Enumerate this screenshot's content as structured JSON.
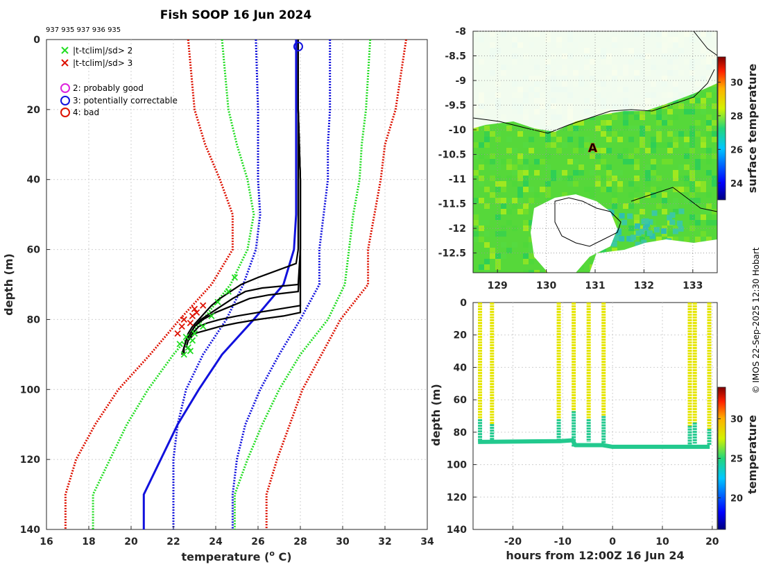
{
  "title": "Fish SOOP 16 Jun 2024",
  "drop_ids": "937 935 937 936 935",
  "credit": "© IMOS 22-Sep-2025 12:30 Hobart",
  "colors": {
    "green": "#22dd22",
    "red": "#dd1100",
    "blue": "#1111dd",
    "magenta": "#dd22dd",
    "black": "#000000",
    "yellow": "#e6e600",
    "teal": "#22c98e",
    "land": "#ffffff",
    "ocean_green": "#44d644"
  },
  "chart_data": [
    {
      "id": "profile",
      "type": "line",
      "xlabel": "temperature (° C)",
      "xlabel_main": "temperature (",
      "xlabel_sup": "o",
      "xlabel_end": " C)",
      "ylabel": "depth (m)",
      "xlim": [
        16,
        34
      ],
      "ylim": [
        0,
        140
      ],
      "xticks": [
        "16",
        "18",
        "20",
        "22",
        "24",
        "26",
        "28",
        "30",
        "32",
        "34"
      ],
      "yticks": [
        "0",
        "20",
        "40",
        "60",
        "80",
        "100",
        "120",
        "140"
      ],
      "legend": {
        "items": [
          {
            "symbol": "x",
            "color": "#22dd22",
            "label": "|t-tclim|/sd> 2"
          },
          {
            "symbol": "x",
            "color": "#dd1100",
            "label": "|t-tclim|/sd> 3"
          },
          {
            "symbol": "o",
            "color": "#dd22dd",
            "label": "2: probably good"
          },
          {
            "symbol": "o",
            "color": "#1111dd",
            "label": "3: potentially correctable"
          },
          {
            "symbol": "o",
            "color": "#dd1100",
            "label": "4: bad"
          }
        ]
      },
      "climatology": {
        "depths": [
          0,
          20,
          30,
          40,
          50,
          60,
          70,
          80,
          90,
          100,
          110,
          120,
          130,
          140
        ],
        "mean": [
          27.8,
          27.8,
          27.8,
          27.8,
          27.8,
          27.7,
          27.2,
          25.8,
          24.3,
          23.2,
          22.2,
          21.4,
          20.6,
          20.6
        ],
        "sd_1": {
          "color": "#1111dd",
          "low": [
            25.9,
            26.0,
            26.0,
            26.0,
            26.1,
            25.9,
            25.3,
            24.5,
            23.4,
            22.6,
            22.2,
            22.0,
            22.0,
            22.0
          ],
          "high": [
            29.4,
            29.4,
            29.3,
            29.3,
            29.1,
            28.9,
            28.9,
            28.0,
            27.0,
            26.1,
            25.4,
            25.0,
            24.8,
            24.8
          ]
        },
        "sd_2": {
          "color": "#22dd22",
          "low": [
            24.3,
            24.6,
            25.0,
            25.5,
            25.8,
            25.5,
            24.7,
            23.4,
            22.0,
            20.8,
            19.8,
            19.0,
            18.2,
            18.2
          ],
          "high": [
            31.3,
            31.1,
            30.9,
            30.8,
            30.5,
            30.3,
            30.1,
            29.3,
            28.0,
            27.0,
            26.2,
            25.5,
            24.9,
            24.9
          ],
          "note": "sd2 line on low side starts near 24.3"
        },
        "sd_3": {
          "color": "#dd1100",
          "low": [
            22.7,
            23.0,
            23.5,
            24.2,
            24.8,
            24.8,
            23.8,
            22.3,
            20.9,
            19.4,
            18.3,
            17.4,
            16.9,
            16.9
          ],
          "high": [
            33.0,
            32.5,
            32.0,
            31.8,
            31.5,
            31.2,
            31.2,
            29.9,
            29.0,
            28.1,
            27.5,
            26.9,
            26.4,
            26.4
          ]
        }
      },
      "profiles": [
        {
          "depths": [
            0,
            20,
            40,
            60,
            64,
            68,
            70,
            72,
            74,
            76,
            78,
            80,
            82,
            84,
            86,
            88,
            90
          ],
          "temps": [
            27.9,
            27.9,
            27.9,
            27.9,
            27.8,
            26.0,
            25.2,
            24.7,
            24.2,
            23.8,
            23.5,
            23.2,
            22.9,
            22.7,
            22.6,
            22.5,
            22.4
          ]
        },
        {
          "depths": [
            0,
            20,
            40,
            60,
            70,
            71,
            72,
            74,
            76,
            78,
            80,
            82,
            84,
            86,
            88,
            90
          ],
          "temps": [
            27.9,
            27.9,
            28.0,
            28.0,
            27.9,
            26.2,
            25.4,
            24.8,
            24.3,
            23.8,
            23.3,
            23.0,
            22.8,
            22.6,
            22.5,
            22.5
          ]
        },
        {
          "depths": [
            0,
            20,
            40,
            60,
            72,
            73,
            74,
            76,
            78,
            80,
            82,
            84,
            86,
            88,
            90
          ],
          "temps": [
            27.9,
            27.9,
            28.0,
            28.0,
            27.9,
            26.5,
            25.6,
            24.8,
            24.0,
            23.4,
            23.0,
            22.8,
            22.6,
            22.5,
            22.4
          ]
        },
        {
          "depths": [
            0,
            20,
            40,
            60,
            76,
            77,
            78,
            79,
            80,
            81,
            82,
            84,
            86,
            88
          ],
          "temps": [
            27.9,
            27.9,
            28.0,
            28.0,
            28.0,
            27.0,
            26.0,
            25.0,
            24.2,
            23.6,
            23.2,
            22.9,
            22.7,
            22.6
          ]
        },
        {
          "depths": [
            0,
            20,
            40,
            60,
            78,
            79,
            80,
            81,
            82,
            83,
            84,
            86,
            88
          ],
          "temps": [
            27.9,
            27.9,
            28.0,
            28.0,
            28.0,
            27.2,
            26.0,
            25.0,
            24.2,
            23.6,
            23.0,
            22.7,
            22.6
          ]
        }
      ],
      "flags_green": [
        [
          24.9,
          68
        ],
        [
          24.6,
          72
        ],
        [
          24.1,
          75
        ],
        [
          23.8,
          79
        ],
        [
          23.4,
          82
        ],
        [
          23.0,
          84
        ],
        [
          22.9,
          86
        ],
        [
          22.7,
          88
        ],
        [
          22.5,
          90
        ],
        [
          22.8,
          89
        ],
        [
          22.3,
          87
        ],
        [
          22.6,
          85
        ]
      ],
      "flags_red": [
        [
          23.4,
          76
        ],
        [
          23.1,
          78
        ],
        [
          22.9,
          79
        ],
        [
          22.5,
          80
        ],
        [
          22.4,
          82
        ],
        [
          22.2,
          84
        ],
        [
          22.8,
          81
        ],
        [
          23.0,
          77
        ]
      ],
      "start_marker": {
        "temp": 27.9,
        "depth": 2,
        "color": "#1111dd"
      }
    },
    {
      "id": "map",
      "type": "heatmap",
      "xlim": [
        128.5,
        133.5
      ],
      "ylim": [
        -12.9,
        -8.0
      ],
      "xticks": [
        "129",
        "130",
        "131",
        "132",
        "133"
      ],
      "yticks": [
        "-8",
        "-8.5",
        "-9",
        "-9.5",
        "-10",
        "-10.5",
        "-11",
        "-11.5",
        "-12",
        "-12.5"
      ],
      "colorbar_label": "surface temperature",
      "colorbar_ticks": [
        "24",
        "26",
        "28",
        "30"
      ],
      "colorbar_range": [
        23,
        31.5
      ],
      "marker": {
        "lon": 130.95,
        "lat": -10.35,
        "symbol": "A",
        "color": "#dd1100"
      }
    },
    {
      "id": "timeseries",
      "type": "scatter",
      "xlabel": "hours from 12:00Z 16 Jun 24",
      "ylabel": "depth (m)",
      "xlim": [
        -28,
        21
      ],
      "ylim": [
        0,
        140
      ],
      "xticks": [
        "-20",
        "-10",
        "0",
        "10",
        "20"
      ],
      "yticks": [
        "0",
        "20",
        "40",
        "60",
        "80",
        "100",
        "120",
        "140"
      ],
      "colorbar_label": "temperature",
      "colorbar_ticks": [
        "20",
        "25",
        "30"
      ],
      "colorbar_range": [
        16,
        34
      ],
      "casts": [
        {
          "hour": -26.6,
          "mld": 72,
          "bottom": 86
        },
        {
          "hour": -24.2,
          "mld": 75,
          "bottom": 86
        },
        {
          "hour": -10.8,
          "mld": 72,
          "bottom": 86
        },
        {
          "hour": -7.8,
          "mld": 67,
          "bottom": 89
        },
        {
          "hour": -4.8,
          "mld": 72,
          "bottom": 86
        },
        {
          "hour": -1.8,
          "mld": 70,
          "bottom": 89
        },
        {
          "hour": 15.5,
          "mld": 76,
          "bottom": 88
        },
        {
          "hour": 16.5,
          "mld": 74,
          "bottom": 87
        },
        {
          "hour": 19.4,
          "mld": 78,
          "bottom": 88
        }
      ],
      "bottom_track": {
        "hours": [
          -27,
          -10.5,
          -8,
          -7.5,
          -2,
          0,
          15,
          19.5
        ],
        "depths": [
          86,
          85.5,
          85,
          88,
          88,
          89,
          89,
          89
        ]
      }
    }
  ]
}
